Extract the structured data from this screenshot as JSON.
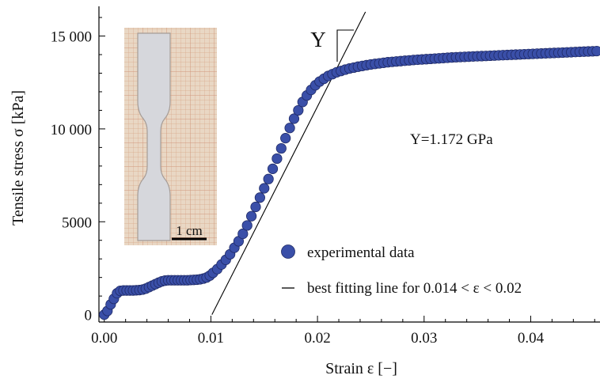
{
  "chart_data": {
    "type": "scatter",
    "title": "",
    "xlabel": "Strain ε [−]",
    "ylabel": "Tensile stress σ [kPa]",
    "xlim": [
      -0.0005,
      0.0465
    ],
    "ylim": [
      -400,
      16600
    ],
    "x_ticks": [
      0.0,
      0.01,
      0.02,
      0.03,
      0.04
    ],
    "x_tick_labels": [
      "0.00",
      "0.01",
      "0.02",
      "0.03",
      "0.04"
    ],
    "y_ticks": [
      0,
      5000,
      10000,
      15000
    ],
    "y_tick_labels": [
      "0",
      "5000",
      "10 000",
      "15 000"
    ],
    "grid": false,
    "legend_position": "bottom-right",
    "series": [
      {
        "name": "experimental data",
        "kind": "points",
        "color": "#3a4fa8",
        "x": [
          0.0,
          0.0003,
          0.0006,
          0.0009,
          0.0012,
          0.0015,
          0.0018,
          0.0021,
          0.0024,
          0.0027,
          0.003,
          0.0033,
          0.0036,
          0.0039,
          0.0042,
          0.0045,
          0.0048,
          0.0051,
          0.0054,
          0.0057,
          0.006,
          0.0063,
          0.0066,
          0.0069,
          0.0072,
          0.0075,
          0.0078,
          0.0081,
          0.0084,
          0.0087,
          0.009,
          0.0093,
          0.0096,
          0.0099,
          0.0102,
          0.0106,
          0.011,
          0.0114,
          0.0118,
          0.0122,
          0.0126,
          0.013,
          0.0134,
          0.0138,
          0.0142,
          0.0146,
          0.015,
          0.0154,
          0.0158,
          0.0162,
          0.0166,
          0.017,
          0.0174,
          0.0178,
          0.0182,
          0.0186,
          0.019,
          0.0194,
          0.0198,
          0.0202,
          0.0206,
          0.021,
          0.0214,
          0.0218,
          0.0222,
          0.0226,
          0.023,
          0.0234,
          0.0238,
          0.0242,
          0.0246,
          0.025,
          0.0254,
          0.0258,
          0.0262,
          0.0266,
          0.027,
          0.0274,
          0.0278,
          0.0282,
          0.0286,
          0.029,
          0.0294,
          0.0298,
          0.0302,
          0.0306,
          0.031,
          0.0314,
          0.0318,
          0.0322,
          0.0326,
          0.033,
          0.0334,
          0.0338,
          0.0342,
          0.0346,
          0.035,
          0.0354,
          0.0358,
          0.0362,
          0.0366,
          0.037,
          0.0374,
          0.0378,
          0.0382,
          0.0386,
          0.039,
          0.0394,
          0.0398,
          0.0402,
          0.0406,
          0.041,
          0.0414,
          0.0418,
          0.0422,
          0.0426,
          0.043,
          0.0434,
          0.0438,
          0.0442,
          0.0446,
          0.045,
          0.0454,
          0.0458,
          0.0462
        ],
        "y": [
          0,
          200,
          550,
          850,
          1150,
          1280,
          1300,
          1300,
          1300,
          1300,
          1310,
          1320,
          1350,
          1400,
          1480,
          1560,
          1640,
          1720,
          1790,
          1830,
          1850,
          1850,
          1850,
          1850,
          1850,
          1850,
          1850,
          1860,
          1870,
          1880,
          1900,
          1940,
          2000,
          2100,
          2250,
          2450,
          2700,
          2950,
          3250,
          3600,
          3950,
          4350,
          4800,
          5300,
          5800,
          6300,
          6800,
          7300,
          7850,
          8400,
          8950,
          9500,
          10050,
          10550,
          11000,
          11450,
          11800,
          12100,
          12350,
          12550,
          12700,
          12850,
          12950,
          13050,
          13120,
          13190,
          13250,
          13300,
          13350,
          13390,
          13430,
          13470,
          13500,
          13530,
          13560,
          13590,
          13610,
          13630,
          13650,
          13670,
          13690,
          13710,
          13725,
          13740,
          13755,
          13770,
          13785,
          13800,
          13815,
          13830,
          13845,
          13860,
          13870,
          13880,
          13890,
          13900,
          13910,
          13920,
          13930,
          13940,
          13950,
          13960,
          13970,
          13980,
          13990,
          14000,
          14010,
          14020,
          14030,
          14040,
          14050,
          14060,
          14070,
          14080,
          14090,
          14100,
          14110,
          14120,
          14130,
          14140,
          14150,
          14160,
          14170,
          14180,
          14190
        ]
      },
      {
        "name": "best fitting line for 0.014 < ε < 0.02",
        "kind": "line",
        "color": "#000000",
        "x": [
          0.0101,
          0.0245
        ],
        "y": [
          0,
          16300
        ]
      }
    ],
    "annotations": {
      "modulus_text": "Y=1.172 GPa",
      "slope_label": "Y",
      "inset_scale_label": "1 cm"
    }
  }
}
